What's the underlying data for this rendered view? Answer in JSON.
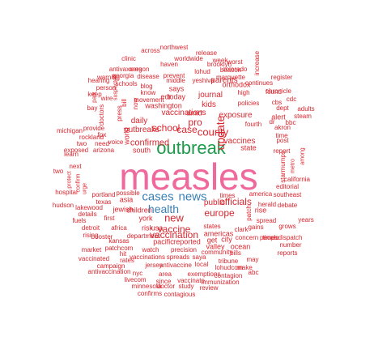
{
  "colors": {
    "accent_pink": "#f0699c",
    "accent_green": "#1f9a4a",
    "accent_blue": "#3a7fb5",
    "word_red": "#d9262e"
  },
  "words": [
    "measles",
    "outbreak",
    "health",
    "cases",
    "news",
    "update",
    "vaccine",
    "county",
    "new",
    "vaccination",
    "officials",
    "europe",
    "americas",
    "school",
    "case",
    "pro",
    "confirmed",
    "edr",
    "kids",
    "washington",
    "vaccinations",
    "outbreaks",
    "daily",
    "journal",
    "exposure",
    "parents",
    "vaccines",
    "state",
    "amid",
    "today",
    "says",
    "jewish",
    "children",
    "public",
    "asia",
    "york",
    "pacific",
    "reported",
    "risk",
    "usa",
    "get",
    "city",
    "rise",
    "post",
    "report",
    "spread",
    "america",
    "herald",
    "debate",
    "gains",
    "grows",
    "number",
    "reports",
    "years",
    "southeast",
    "starmumps",
    "metro",
    "among",
    "california",
    "akron",
    "adults",
    "steam",
    "alert",
    "cbs",
    "dept",
    "register",
    "chronicle",
    "continues",
    "policies",
    "orthodox",
    "high",
    "brooklyn",
    "marquette",
    "beacon",
    "worst",
    "week",
    "increase",
    "colorado",
    "found",
    "lohud",
    "yeshiva",
    "middle",
    "prevent",
    "disease",
    "oregon",
    "haven",
    "worldwide",
    "release",
    "northwest",
    "across",
    "clinic",
    "antivaxxers",
    "georgia",
    "warning",
    "person",
    "wire",
    "park",
    "bay",
    "keep",
    "hearing",
    "schools",
    "blog",
    "know",
    "movement",
    "bill",
    "now",
    "world",
    "press",
    "rockland",
    "voice",
    "fox",
    "need",
    "south",
    "two",
    "arizona",
    "exposed",
    "learn",
    "michigan",
    "provide",
    "doctors",
    "suspected",
    "top",
    "two",
    "protect",
    "urge",
    "next",
    "confirm",
    "hospital",
    "hudson",
    "lakewood",
    "fuels",
    "details",
    "detroit",
    "rising",
    "market",
    "booster",
    "vaccinated",
    "campaign",
    "antivaccination",
    "portland",
    "possible",
    "texas",
    "one",
    "first",
    "africa",
    "department",
    "kansas",
    "patchcom",
    "hit",
    "rates",
    "watch",
    "precision",
    "vaccinations",
    "spreads",
    "saya",
    "antivaccine",
    "jersey",
    "local",
    "community",
    "bills",
    "tribune",
    "may",
    "lohudcom",
    "make",
    "abc",
    "nyc",
    "area",
    "exemptions",
    "contagion",
    "livecom",
    "since",
    "vaccinate",
    "immunization",
    "minnesota",
    "doctor",
    "study",
    "confirms",
    "contagious",
    "review",
    "valley",
    "ocean",
    "people",
    "concern",
    "clark",
    "patch",
    "times",
    "states",
    "child",
    "timesdispatch",
    "editorial",
    "time",
    "cdc",
    "asbury",
    "statescom",
    "memphis",
    "fourth",
    "dr",
    "bbc",
    "cnn"
  ]
}
